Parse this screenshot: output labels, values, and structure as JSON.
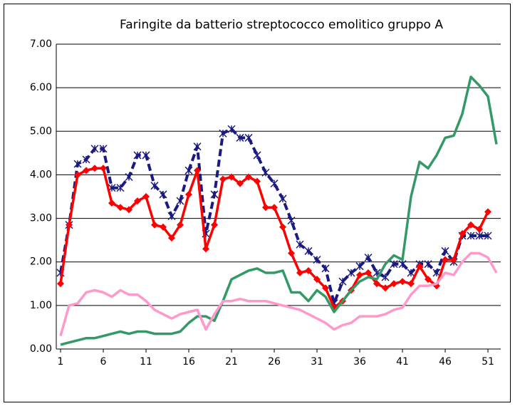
{
  "chart_data": {
    "type": "line",
    "title": "Faringite da batterio streptococco emolitico gruppo A",
    "x": [
      1,
      2,
      3,
      4,
      5,
      6,
      7,
      8,
      9,
      10,
      11,
      12,
      13,
      14,
      15,
      16,
      17,
      18,
      19,
      20,
      21,
      22,
      23,
      24,
      25,
      26,
      27,
      28,
      29,
      30,
      31,
      32,
      33,
      34,
      35,
      36,
      37,
      38,
      39,
      40,
      41,
      42,
      43,
      44,
      45,
      46,
      47,
      48,
      49,
      50,
      51,
      52
    ],
    "xlim": [
      0.5,
      52.5
    ],
    "xticks": [
      1,
      6,
      11,
      16,
      21,
      26,
      31,
      36,
      41,
      46,
      51
    ],
    "ylim": [
      0,
      7
    ],
    "yticks": [
      {
        "value": 0,
        "label": "0.00"
      },
      {
        "value": 1,
        "label": "1.00"
      },
      {
        "value": 2,
        "label": "2.00"
      },
      {
        "value": 3,
        "label": "3.00"
      },
      {
        "value": 4,
        "label": "4.00"
      },
      {
        "value": 5,
        "label": "5.00"
      },
      {
        "value": 6,
        "label": "6.00"
      },
      {
        "value": 7,
        "label": "7.00"
      }
    ],
    "grid": true,
    "series": [
      {
        "color": "#1a1a80",
        "marker": "star",
        "dash": true,
        "values": [
          1.75,
          2.85,
          4.25,
          4.35,
          4.6,
          4.6,
          3.7,
          3.7,
          3.95,
          4.45,
          4.45,
          3.75,
          3.55,
          3.05,
          3.4,
          4.1,
          4.65,
          2.65,
          3.55,
          4.95,
          5.05,
          4.85,
          4.85,
          4.45,
          4.05,
          3.8,
          3.45,
          2.95,
          2.4,
          2.25,
          2.05,
          1.85,
          1.05,
          1.55,
          1.75,
          1.9,
          2.1,
          1.75,
          1.65,
          1.95,
          1.95,
          1.75,
          1.95,
          1.95,
          1.75,
          2.25,
          2.0,
          2.6,
          2.6,
          2.6,
          2.6,
          null
        ]
      },
      {
        "color": "#ff0000",
        "marker": "diamond",
        "dash": false,
        "values": [
          1.5,
          2.85,
          4.0,
          4.1,
          4.15,
          4.15,
          3.35,
          3.25,
          3.2,
          3.4,
          3.5,
          2.85,
          2.8,
          2.55,
          2.85,
          3.55,
          4.1,
          2.3,
          2.85,
          3.9,
          3.95,
          3.8,
          3.95,
          3.85,
          3.25,
          3.25,
          2.8,
          2.2,
          1.75,
          1.8,
          1.6,
          1.4,
          0.95,
          1.1,
          1.35,
          1.7,
          1.75,
          1.5,
          1.4,
          1.5,
          1.55,
          1.5,
          1.9,
          1.6,
          1.45,
          2.05,
          2.05,
          2.65,
          2.85,
          2.75,
          3.15,
          null
        ]
      },
      {
        "color": "#339966",
        "marker": "none",
        "dash": false,
        "values": [
          0.1,
          0.15,
          0.2,
          0.25,
          0.25,
          0.3,
          0.35,
          0.4,
          0.35,
          0.4,
          0.4,
          0.35,
          0.35,
          0.35,
          0.4,
          0.6,
          0.75,
          0.75,
          0.65,
          1.1,
          1.6,
          1.7,
          1.8,
          1.85,
          1.75,
          1.75,
          1.8,
          1.3,
          1.3,
          1.1,
          1.35,
          1.2,
          0.85,
          1.1,
          1.35,
          1.55,
          1.65,
          1.6,
          1.95,
          2.15,
          2.05,
          3.5,
          4.3,
          4.15,
          4.45,
          4.85,
          4.9,
          5.4,
          6.25,
          6.05,
          5.8,
          4.7
        ]
      },
      {
        "color": "#ff99cc",
        "marker": "none",
        "dash": false,
        "values": [
          0.3,
          1.0,
          1.05,
          1.3,
          1.35,
          1.3,
          1.2,
          1.35,
          1.25,
          1.25,
          1.1,
          0.9,
          0.8,
          0.7,
          0.8,
          0.85,
          0.9,
          0.45,
          0.8,
          1.1,
          1.1,
          1.15,
          1.1,
          1.1,
          1.1,
          1.05,
          1.0,
          0.95,
          0.9,
          0.8,
          0.7,
          0.6,
          0.45,
          0.55,
          0.6,
          0.75,
          0.75,
          0.75,
          0.8,
          0.9,
          0.95,
          1.25,
          1.45,
          1.45,
          1.5,
          1.75,
          1.7,
          2.0,
          2.2,
          2.2,
          2.1,
          1.75
        ]
      }
    ]
  }
}
